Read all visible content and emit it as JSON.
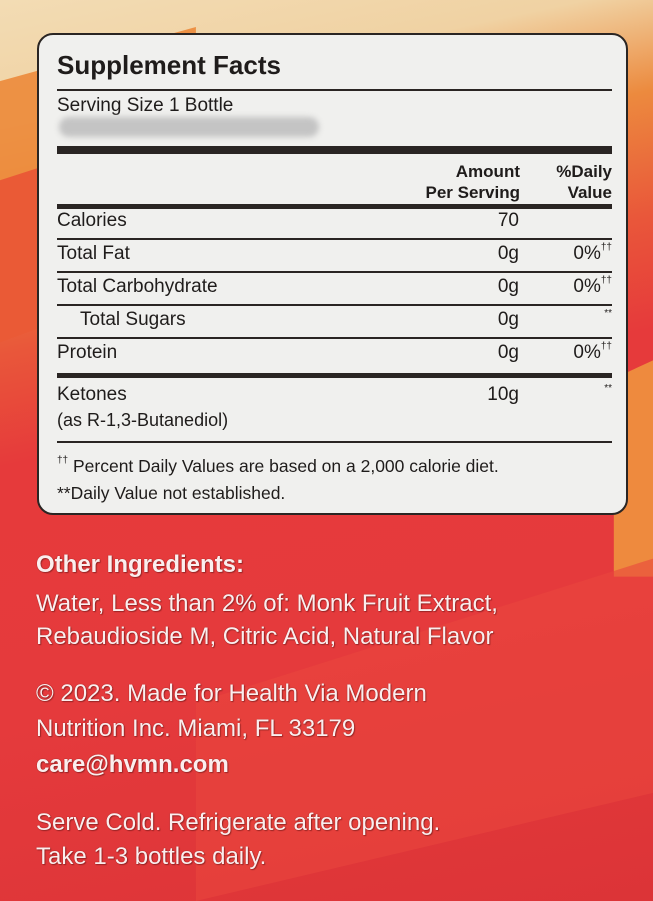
{
  "colors": {
    "background_top": "#f3dcb4",
    "background_orange": "#ec8a3e",
    "background_red": "#e53a3c",
    "panel": "#f0f0ee",
    "ink": "#1f1c1b"
  },
  "facts": {
    "title": "Supplement Facts",
    "serving_size": "Serving Size 1 Bottle",
    "col_amount_1": "Amount",
    "col_amount_2": "Per Serving",
    "col_dv_1": "%Daily",
    "col_dv_2": "Value",
    "rows": [
      {
        "name": "Calories",
        "amount": "70",
        "dv": ""
      },
      {
        "name": "Total Fat",
        "amount": "0g",
        "dv": "0%",
        "dv_mark": "††"
      },
      {
        "name": "Total Carbohydrate",
        "amount": "0g",
        "dv": "0%",
        "dv_mark": "††"
      },
      {
        "name": "Total Sugars",
        "amount": "0g",
        "dv": "",
        "dv_mark": "**"
      },
      {
        "name": "Protein",
        "amount": "0g",
        "dv": "0%",
        "dv_mark": "††"
      },
      {
        "name": "Ketones",
        "name_sub": "(as R-1,3-Butanediol)",
        "amount": "10g",
        "dv": "",
        "dv_mark": "**"
      }
    ],
    "footnote_1_mark": "††",
    "footnote_1": " Percent Daily Values are based on a 2,000 calorie diet.",
    "footnote_2": "**Daily Value not established."
  },
  "other": {
    "heading": "Other Ingredients:",
    "ingredients_1": "Water, Less than 2% of: Monk Fruit Extract,",
    "ingredients_2": "Rebaudioside M, Citric Acid, Natural Flavor",
    "copyright_1": "© 2023. Made for Health Via Modern",
    "copyright_2": "Nutrition Inc. Miami, FL 33179",
    "email": "care@hvmn.com",
    "directions_1": "Serve Cold. Refrigerate after opening.",
    "directions_2": "Take 1-3 bottles daily."
  }
}
